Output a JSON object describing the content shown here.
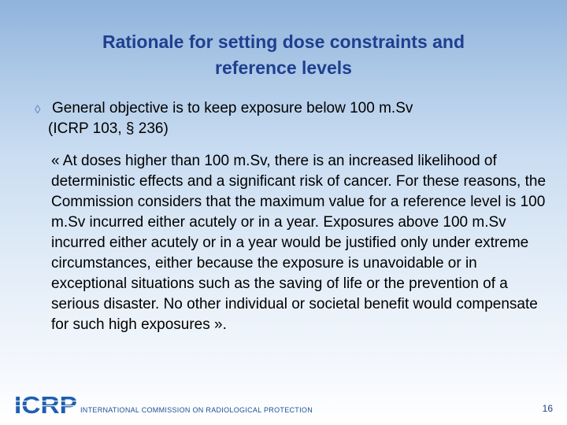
{
  "slide": {
    "title_line1": "Rationale for setting dose constraints and",
    "title_line2": "reference levels",
    "bullet_icon": "bullet-icon",
    "bullet_line1": "General objective is to keep exposure below 100 m.Sv",
    "bullet_line2": "(ICRP 103, § 236)",
    "quote": "« At doses higher than 100 m.Sv, there is an increased likelihood of deterministic effects and a significant risk of cancer. For these reasons, the Commission considers that the maximum value for a reference level is 100 m.Sv incurred either acutely or in a year. Exposures above 100 m.Sv incurred either acutely or in a year would be justified only under extreme circumstances, either because the exposure is unavoidable or in exceptional situations such as the saving of life or the prevention of a serious disaster. No other individual or societal benefit would compensate for such high exposures ».",
    "logo_text": "ICRP",
    "footer_text": "INTERNATIONAL COMMISSION ON RADIOLOGICAL PROTECTION",
    "page_number": "16"
  },
  "colors": {
    "title": "#1f3f8f",
    "logo": "#1f5fb0",
    "footer_text": "#1f4e96",
    "bullet": "#5b7fbf"
  }
}
